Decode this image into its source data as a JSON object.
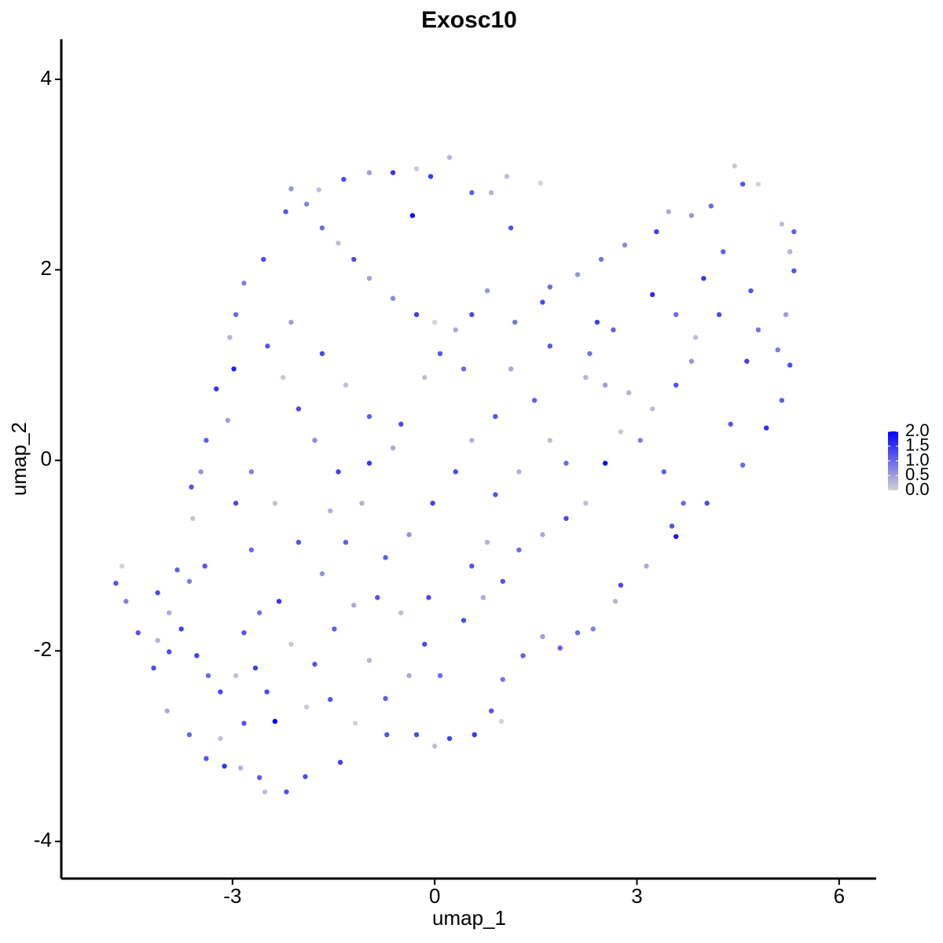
{
  "chart_data": {
    "type": "scatter",
    "title": "Exosc10",
    "x_label": "umap_1",
    "y_label": "umap_2",
    "xlim": [
      -5.54,
      6.55
    ],
    "ylim": [
      -4.39,
      4.42
    ],
    "xticks": [
      -3,
      0,
      3,
      6
    ],
    "yticks": [
      -4,
      -2,
      0,
      2,
      4
    ],
    "color_low": "#d3d3d3",
    "color_high": "#0000ff",
    "clim": [
      0,
      2.0
    ],
    "color_ticks": [
      {
        "value": 0,
        "label": "0.0"
      },
      {
        "value": 0.5,
        "label": "0.5"
      },
      {
        "value": 1,
        "label": "1.0"
      },
      {
        "value": 1.5,
        "label": "1.5"
      },
      {
        "value": 2,
        "label": "2.0"
      }
    ],
    "x": [
      -4.73,
      -4.64,
      -4.58,
      -4.4,
      -4.17,
      -3.97,
      -3.64,
      -3.39,
      -3.12,
      -2.88,
      -2.6,
      -2.52,
      -2.2,
      -1.92,
      -2.37,
      -1.4,
      -1.18,
      -0.71,
      -0.27,
      0,
      0.22,
      0.59,
      0.84,
      0.99,
      1.01,
      1.31,
      1.6,
      1.86,
      2.12,
      2.35,
      2.68,
      2.76,
      3.14,
      3.58,
      3.52,
      3.69,
      4.04,
      4.57,
      4.92,
      5.15,
      5.27,
      5.09,
      5.21,
      5.33,
      5.27,
      5.33,
      5.15,
      4.8,
      4.45,
      4.57,
      4.1,
      3.81,
      3.47,
      3.29,
      2.82,
      2.47,
      2.12,
      1.71,
      1.6,
      1.19,
      0.78,
      0.55,
      0.31,
      0,
      -0.27,
      -0.62,
      -0.97,
      -1.2,
      -1.43,
      -1.67,
      -1.9,
      -2.13,
      -1.72,
      -1.35,
      -0.97,
      -0.62,
      -0.27,
      -0.06,
      0.22,
      0.55,
      0.84,
      1.07,
      1.13,
      1.57,
      -0.33,
      -2.21,
      -2.54,
      -2.83,
      -2.95,
      -3.04,
      -2.98,
      -3.24,
      -3.07,
      -3.39,
      -3.47,
      -3.61,
      -3.59,
      -3.41,
      -3.64,
      -3.82,
      -4.11,
      -3.94,
      -3.76,
      -4.11,
      -3.94,
      -3.53,
      -3.36,
      -3.18,
      -2.95,
      -2.66,
      -2.83,
      -2.6,
      -2.31,
      -2.13,
      -1.78,
      -1.49,
      -1.2,
      -0.85,
      -0.5,
      -0.15,
      0.08,
      0.43,
      0.72,
      1.01,
      1.25,
      1.6,
      1.95,
      2.24,
      2.53,
      2.76,
      2.88,
      2.53,
      2.24,
      2.3,
      2.65,
      2.41,
      3.23,
      3.58,
      3.87,
      4.22,
      3.81,
      3.58,
      3.23,
      3.05,
      3.4,
      4.39,
      4.63,
      4.8,
      4.69,
      4.28,
      3.99,
      1.71,
      1.48,
      1.13,
      0.9,
      0.55,
      0.31,
      -0.03,
      -0.38,
      -0.73,
      -1.08,
      -1.43,
      -1.78,
      -2.02,
      -2.25,
      -2.48,
      -2.13,
      -1.67,
      -1.32,
      -0.97,
      -0.62,
      -0.5,
      -0.15,
      0.08,
      0.43,
      -2.72,
      -2.95,
      -2.72,
      -2.37,
      -2.02,
      -1.67,
      -1.32,
      -1.55,
      -0.97,
      0.9,
      1.25,
      1.71,
      1.95,
      0.78,
      0.55,
      -0.09,
      -0.38,
      -0.73,
      -0.97,
      -1.55,
      -1.9,
      -2.49,
      -2.83,
      -3.18
    ],
    "y": [
      -1.29,
      -1.11,
      -1.48,
      -1.81,
      -2.18,
      -2.63,
      -2.88,
      -3.13,
      -3.21,
      -3.23,
      -3.33,
      -3.48,
      -3.48,
      -3.32,
      -2.74,
      -3.17,
      -2.76,
      -2.88,
      -2.88,
      -3.0,
      -2.92,
      -2.88,
      -2.63,
      -2.74,
      -2.3,
      -2.05,
      -1.85,
      -1.97,
      -1.81,
      -1.77,
      -1.48,
      -1.31,
      -1.11,
      -0.8,
      -0.69,
      -0.45,
      -0.45,
      -0.05,
      0.34,
      0.63,
      1.0,
      1.16,
      1.53,
      1.99,
      2.19,
      2.4,
      2.48,
      2.9,
      3.09,
      2.9,
      2.67,
      2.57,
      2.61,
      2.4,
      2.26,
      2.11,
      1.95,
      1.82,
      1.66,
      1.45,
      1.78,
      1.53,
      1.37,
      1.45,
      1.53,
      1.7,
      1.91,
      2.11,
      2.28,
      2.44,
      2.69,
      2.85,
      2.84,
      2.95,
      3.02,
      3.02,
      3.06,
      2.98,
      3.18,
      2.81,
      2.81,
      2.98,
      2.44,
      2.91,
      2.57,
      2.61,
      2.11,
      1.86,
      1.53,
      1.29,
      0.96,
      0.75,
      0.42,
      0.21,
      -0.12,
      -0.28,
      -0.61,
      -1.11,
      -1.27,
      -1.15,
      -1.39,
      -1.6,
      -1.77,
      -1.89,
      -2.01,
      -2.05,
      -2.26,
      -2.43,
      -2.26,
      -2.18,
      -1.81,
      -1.6,
      -1.48,
      -1.93,
      -2.14,
      -1.77,
      -1.52,
      -1.44,
      -1.6,
      -1.93,
      -2.26,
      -1.68,
      -1.44,
      -1.27,
      -0.94,
      -0.78,
      -0.61,
      -0.45,
      -0.03,
      0.3,
      0.71,
      0.79,
      0.87,
      1.12,
      1.37,
      1.45,
      1.74,
      1.53,
      1.29,
      1.53,
      1.04,
      0.79,
      0.54,
      0.21,
      -0.12,
      0.38,
      1.04,
      1.37,
      1.78,
      2.19,
      1.91,
      1.2,
      0.63,
      0.96,
      0.46,
      0.21,
      -0.12,
      -0.45,
      -0.78,
      -1.02,
      -0.45,
      -0.12,
      0.21,
      0.54,
      0.87,
      1.2,
      1.45,
      1.12,
      0.79,
      0.46,
      0.13,
      0.38,
      0.87,
      1.12,
      0.96,
      -0.12,
      -0.45,
      -0.94,
      -0.45,
      -0.86,
      -1.19,
      -0.86,
      -0.53,
      -0.03,
      -0.36,
      -0.12,
      0.21,
      -0.03,
      -0.86,
      -1.11,
      -1.44,
      -2.26,
      -2.5,
      -2.1,
      -2.51,
      -2.59,
      -2.43,
      -2.76,
      -2.92
    ],
    "values": [
      1.2,
      0,
      0.8,
      1.2,
      1.3,
      0.4,
      1.0,
      1.2,
      1.5,
      0.3,
      1.1,
      0.2,
      1.2,
      1.3,
      2.0,
      1.4,
      0,
      1.2,
      1.3,
      0.2,
      1.4,
      1.5,
      1.2,
      0,
      0.9,
      1.1,
      0.5,
      1.1,
      1.0,
      0.8,
      0.3,
      1.3,
      0.4,
      1.8,
      1.2,
      1.0,
      1.3,
      1.0,
      1.6,
      1.1,
      1.3,
      0.8,
      0.5,
      1.2,
      0.3,
      1.1,
      0.2,
      0,
      0.1,
      1.2,
      1.0,
      0.6,
      0.4,
      1.4,
      0.7,
      0.9,
      0.6,
      1.0,
      1.3,
      0.9,
      0.6,
      1.3,
      0.4,
      0,
      1.4,
      0.7,
      0.5,
      1.3,
      0.2,
      1.0,
      0.8,
      0.6,
      0.2,
      1.3,
      0.5,
      1.5,
      0.1,
      1.4,
      0.3,
      1.1,
      0.3,
      0.2,
      1.2,
      0,
      1.9,
      1.2,
      1.3,
      0.8,
      1.0,
      0.3,
      1.7,
      1.5,
      0.5,
      1.1,
      0.6,
      1.2,
      0.1,
      1.2,
      0.8,
      1.1,
      1.3,
      0.4,
      1.4,
      0.3,
      1.3,
      1.4,
      1.0,
      1.3,
      0.2,
      1.4,
      1.2,
      0.9,
      1.5,
      0.1,
      1.2,
      1.1,
      0.4,
      1.2,
      0.2,
      1.3,
      1.0,
      1.3,
      0.4,
      1.2,
      1.0,
      0.4,
      1.3,
      0.2,
      1.9,
      0.1,
      0.3,
      0.5,
      0.3,
      0.9,
      1.1,
      1.4,
      1.6,
      1.0,
      0.2,
      1.3,
      0.6,
      1.2,
      0.2,
      0.8,
      1.1,
      1.2,
      1.4,
      0.9,
      1.2,
      1.1,
      1.5,
      1.2,
      1.1,
      0.4,
      1.2,
      0.3,
      1.3,
      1.4,
      0.6,
      1.1,
      0.3,
      1.4,
      0.7,
      1.3,
      0.1,
      1.2,
      0.5,
      1.3,
      0.2,
      1.1,
      0.4,
      1.3,
      0.2,
      1.2,
      1.0,
      0.8,
      1.3,
      1.0,
      0.2,
      1.2,
      0.6,
      1.1,
      0.3,
      1.5,
      1.2,
      0.3,
      0.2,
      1.0,
      0.3,
      1.2,
      1.3,
      0.4,
      1.1,
      0.3,
      1.2,
      0.1,
      1.3,
      1.2,
      0.2
    ]
  }
}
